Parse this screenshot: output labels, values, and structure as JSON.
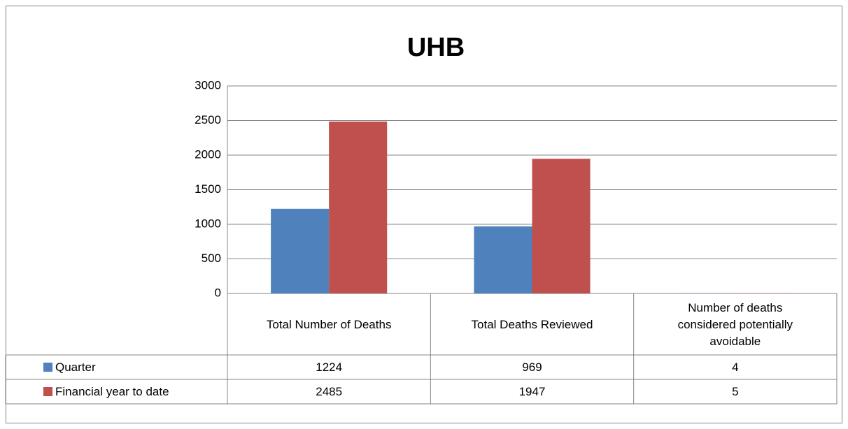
{
  "chart_data": {
    "type": "bar",
    "title": "UHB",
    "categories": [
      "Total Number of Deaths",
      "Total Deaths Reviewed",
      "Number of deaths considered potentially avoidable"
    ],
    "series": [
      {
        "name": "Quarter",
        "color": "#4f81bd",
        "values": [
          1224,
          969,
          4
        ]
      },
      {
        "name": "Financial year to date",
        "color": "#c0504d",
        "values": [
          2485,
          1947,
          5
        ]
      }
    ],
    "ylim": [
      0,
      3000
    ],
    "yticks": [
      0,
      500,
      1000,
      1500,
      2000,
      2500,
      3000
    ],
    "grid": true,
    "data_table": true
  }
}
